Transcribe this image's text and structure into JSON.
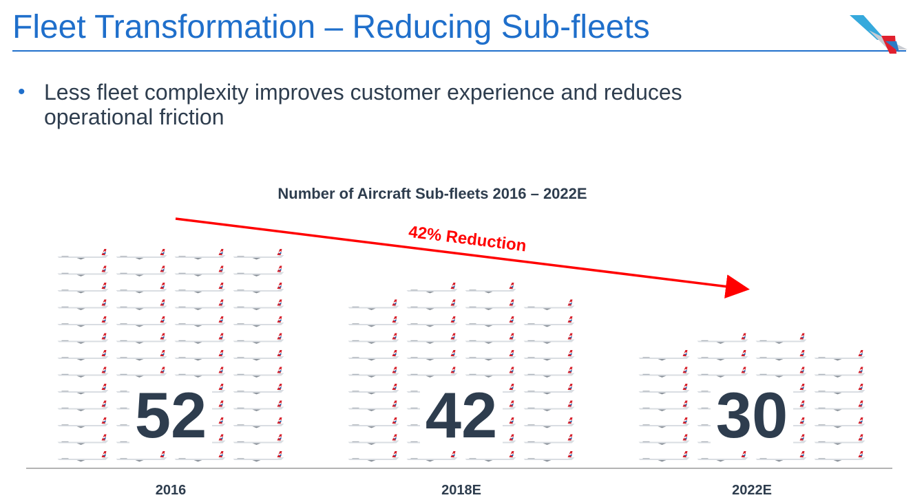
{
  "slide": {
    "title": "Fleet Transformation – Reducing Sub-fleets",
    "bullets": [
      "Less fleet complexity improves customer experience and reduces operational friction"
    ],
    "bullet_symbol": "•",
    "logo_icon": "american-airlines-logo",
    "title_color": "#1f6fcb",
    "text_color": "#2e3d4e"
  },
  "chart_data": {
    "type": "bar",
    "title": "Number of Aircraft Sub-fleets 2016 – 2022E",
    "categories": [
      "2016",
      "2018E",
      "2022E"
    ],
    "values": [
      52,
      42,
      30
    ],
    "value_labels": [
      "52",
      "42",
      "30"
    ],
    "unit_per_icon": 1,
    "icon": "airplane-icon",
    "annotation": "42% Reduction",
    "annotation_color": "#ff0000",
    "value_color": "#2e3d4e",
    "xlabel": "",
    "ylabel": "",
    "grid": false
  }
}
